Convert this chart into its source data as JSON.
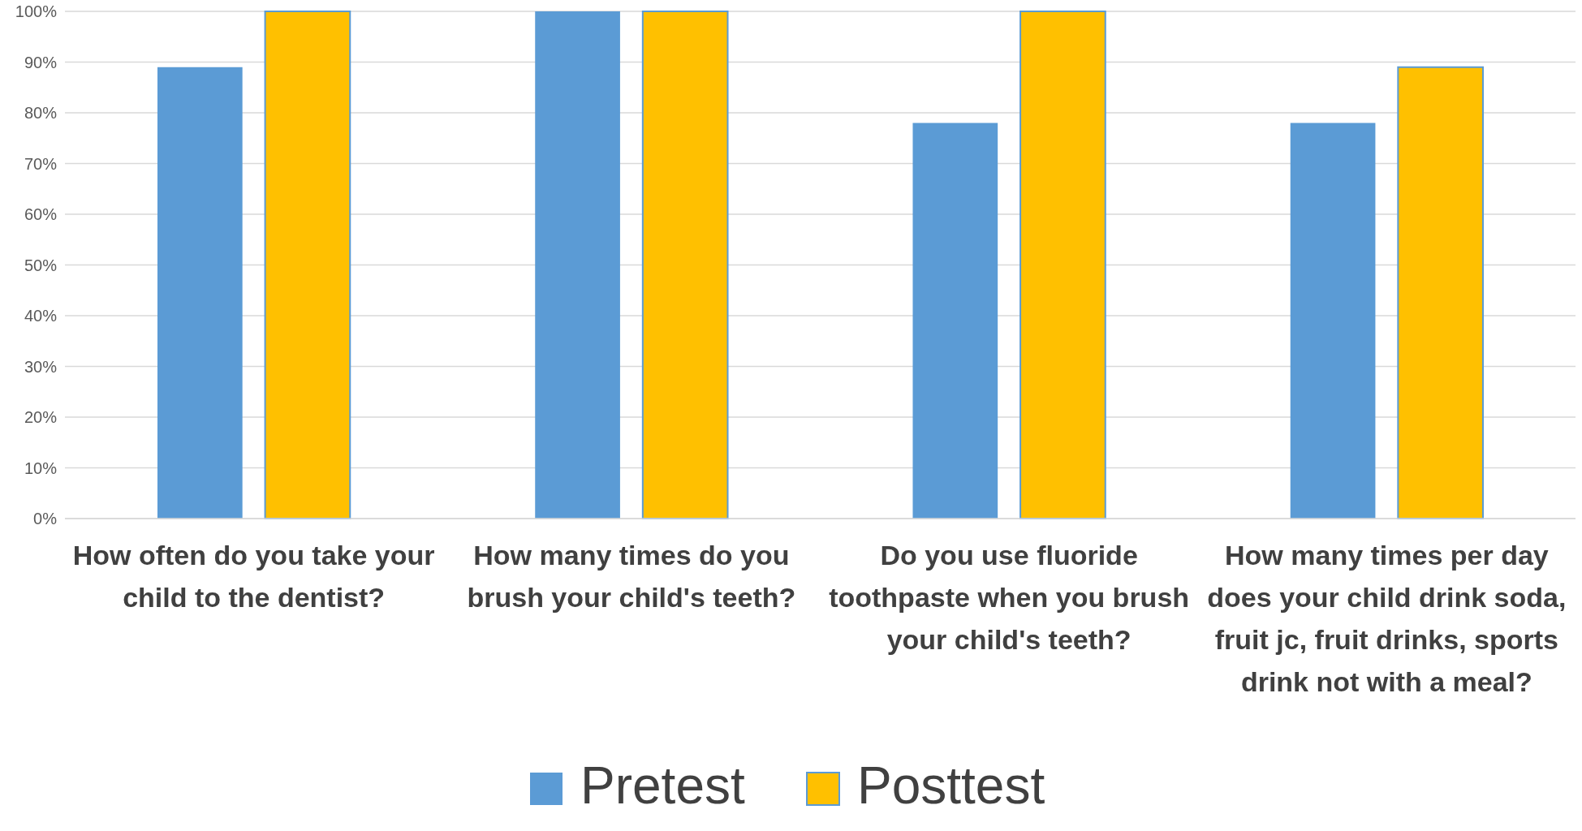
{
  "chart_data": {
    "type": "bar",
    "categories": [
      "How often do you take your child to the dentist?",
      "How many times do you brush your child's teeth?",
      "Do you use fluoride toothpaste when you brush your child's teeth?",
      "How many times per day does your child drink soda, fruit jc,  fruit drinks, sports drink not with a meal?"
    ],
    "series": [
      {
        "name": "Pretest",
        "color": "#5b9bd5",
        "values": [
          89,
          100,
          78,
          78
        ]
      },
      {
        "name": "Posttest",
        "color": "#ffc000",
        "values": [
          100,
          100,
          100,
          89
        ]
      }
    ],
    "ylim": [
      0,
      100
    ],
    "yticks": [
      {
        "value": 0,
        "label": "0%"
      },
      {
        "value": 10,
        "label": "10%"
      },
      {
        "value": 20,
        "label": "20%"
      },
      {
        "value": 30,
        "label": "30%"
      },
      {
        "value": 40,
        "label": "40%"
      },
      {
        "value": 50,
        "label": "50%"
      },
      {
        "value": 60,
        "label": "60%"
      },
      {
        "value": 70,
        "label": "70%"
      },
      {
        "value": 80,
        "label": "80%"
      },
      {
        "value": 90,
        "label": "90%"
      },
      {
        "value": 100,
        "label": "100%"
      }
    ],
    "grid": "y",
    "legend": "bottom"
  }
}
